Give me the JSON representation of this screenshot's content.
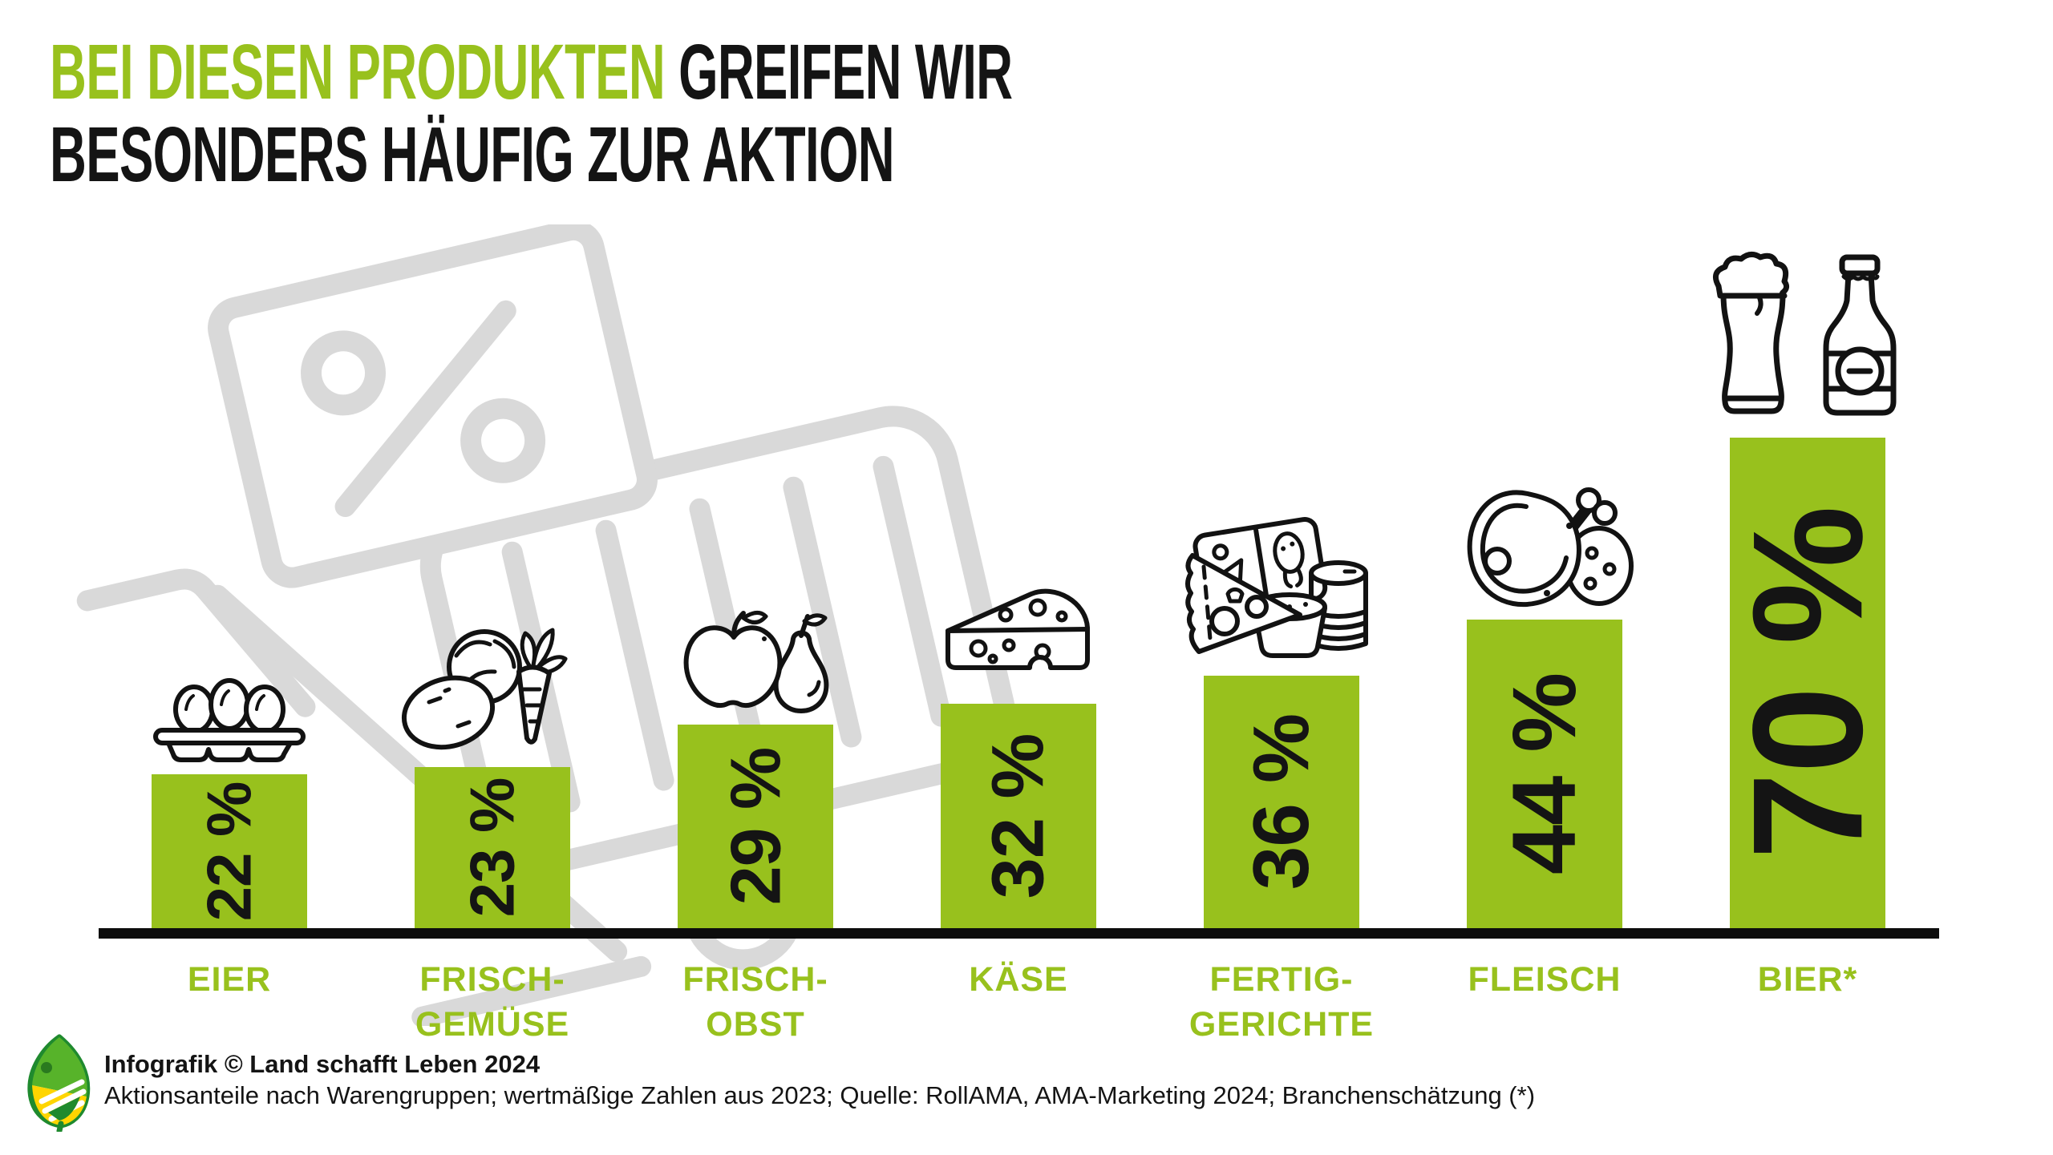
{
  "title": {
    "highlight_line1": "BEI DIESEN PRODUKTEN",
    "rest_line1": " GREIFEN WIR",
    "line2": "BESONDERS HÄUFIG ZUR AKTION"
  },
  "chart_data": {
    "type": "bar",
    "title": "BEI DIESEN PRODUKTEN GREIFEN WIR BESONDERS HÄUFIG ZUR AKTION",
    "categories": [
      "EIER",
      "FRISCH-GEMÜSE",
      "FRISCH-OBST",
      "KÄSE",
      "FERTIG-GERICHTE",
      "FLEISCH",
      "BIER*"
    ],
    "values": [
      22,
      23,
      29,
      32,
      36,
      44,
      70
    ],
    "value_labels": [
      "22 %",
      "23 %",
      "29 %",
      "32 %",
      "36 %",
      "44 %",
      "70 %"
    ],
    "label_lines": [
      [
        "EIER"
      ],
      [
        "FRISCH-",
        "GEMÜSE"
      ],
      [
        "FRISCH-",
        "OBST"
      ],
      [
        "KÄSE"
      ],
      [
        "FERTIG-",
        "GERICHTE"
      ],
      [
        "FLEISCH"
      ],
      [
        "BIER*"
      ]
    ],
    "icons": [
      "egg-carton",
      "vegetables",
      "fruit",
      "cheese",
      "ready-meal",
      "meat",
      "beer"
    ],
    "unit": "%",
    "xlabel": "",
    "ylabel": "",
    "ylim": [
      0,
      75
    ],
    "grid": false,
    "legend": "none",
    "bar_color": "#98c11d"
  },
  "watermark": {
    "name": "shopping-cart-with-discount-coupon",
    "symbol": "%"
  },
  "footer": {
    "credit": "Infografik © Land schafft Leben 2024",
    "source": "Aktionsanteile nach Warengruppen; wertmäßige Zahlen aus 2023; Quelle: RollAMA, AMA-Marketing 2024; Branchenschätzung (*)"
  },
  "colors": {
    "green": "#98c11d",
    "text_black": "#141414",
    "watermark_gray": "#d9d9d9",
    "background": "#ffffff"
  }
}
